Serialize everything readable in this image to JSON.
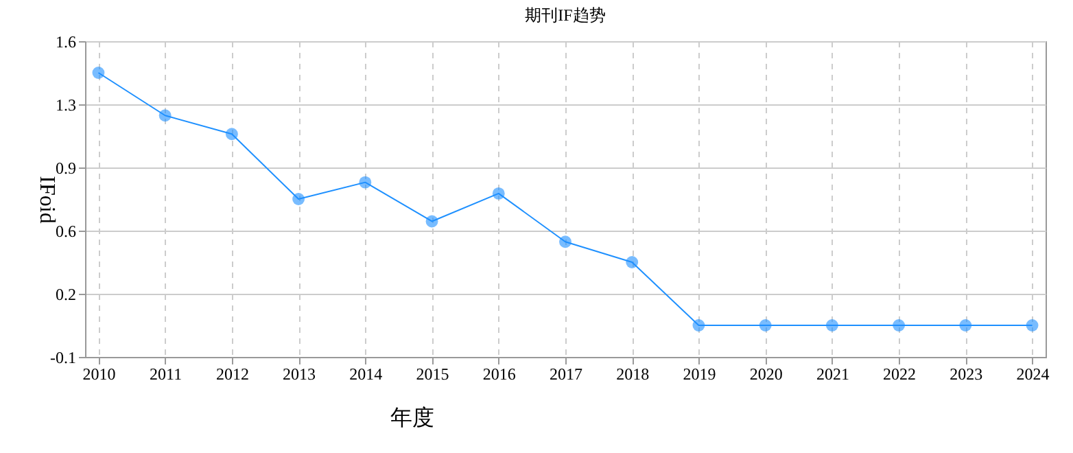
{
  "chart_data": {
    "type": "line",
    "title": "期刊IF趋势",
    "xlabel": "年度",
    "ylabel": "IFoid",
    "categories": [
      "2010",
      "2011",
      "2012",
      "2013",
      "2014",
      "2015",
      "2016",
      "2017",
      "2018",
      "2019",
      "2020",
      "2021",
      "2022",
      "2023",
      "2024"
    ],
    "series": [
      {
        "color": "#1e90ff",
        "values": [
          1.43,
          1.2,
          1.1,
          0.75,
          0.84,
          0.63,
          0.78,
          0.52,
          0.41,
          0.07,
          0.07,
          0.07,
          0.07,
          0.07,
          0.07
        ]
      }
    ],
    "ylim": [
      -0.1,
      1.6
    ],
    "yticks": [
      -0.1,
      {
        "value": 0.24,
        "label": "0.2"
      },
      {
        "value": 0.58,
        "label": "0.6"
      },
      {
        "value": 0.92,
        "label": "0.9"
      },
      {
        "value": 1.26,
        "label": "1.3"
      },
      1.6
    ],
    "grid": true,
    "marker": "circle",
    "line_style": "solid"
  }
}
